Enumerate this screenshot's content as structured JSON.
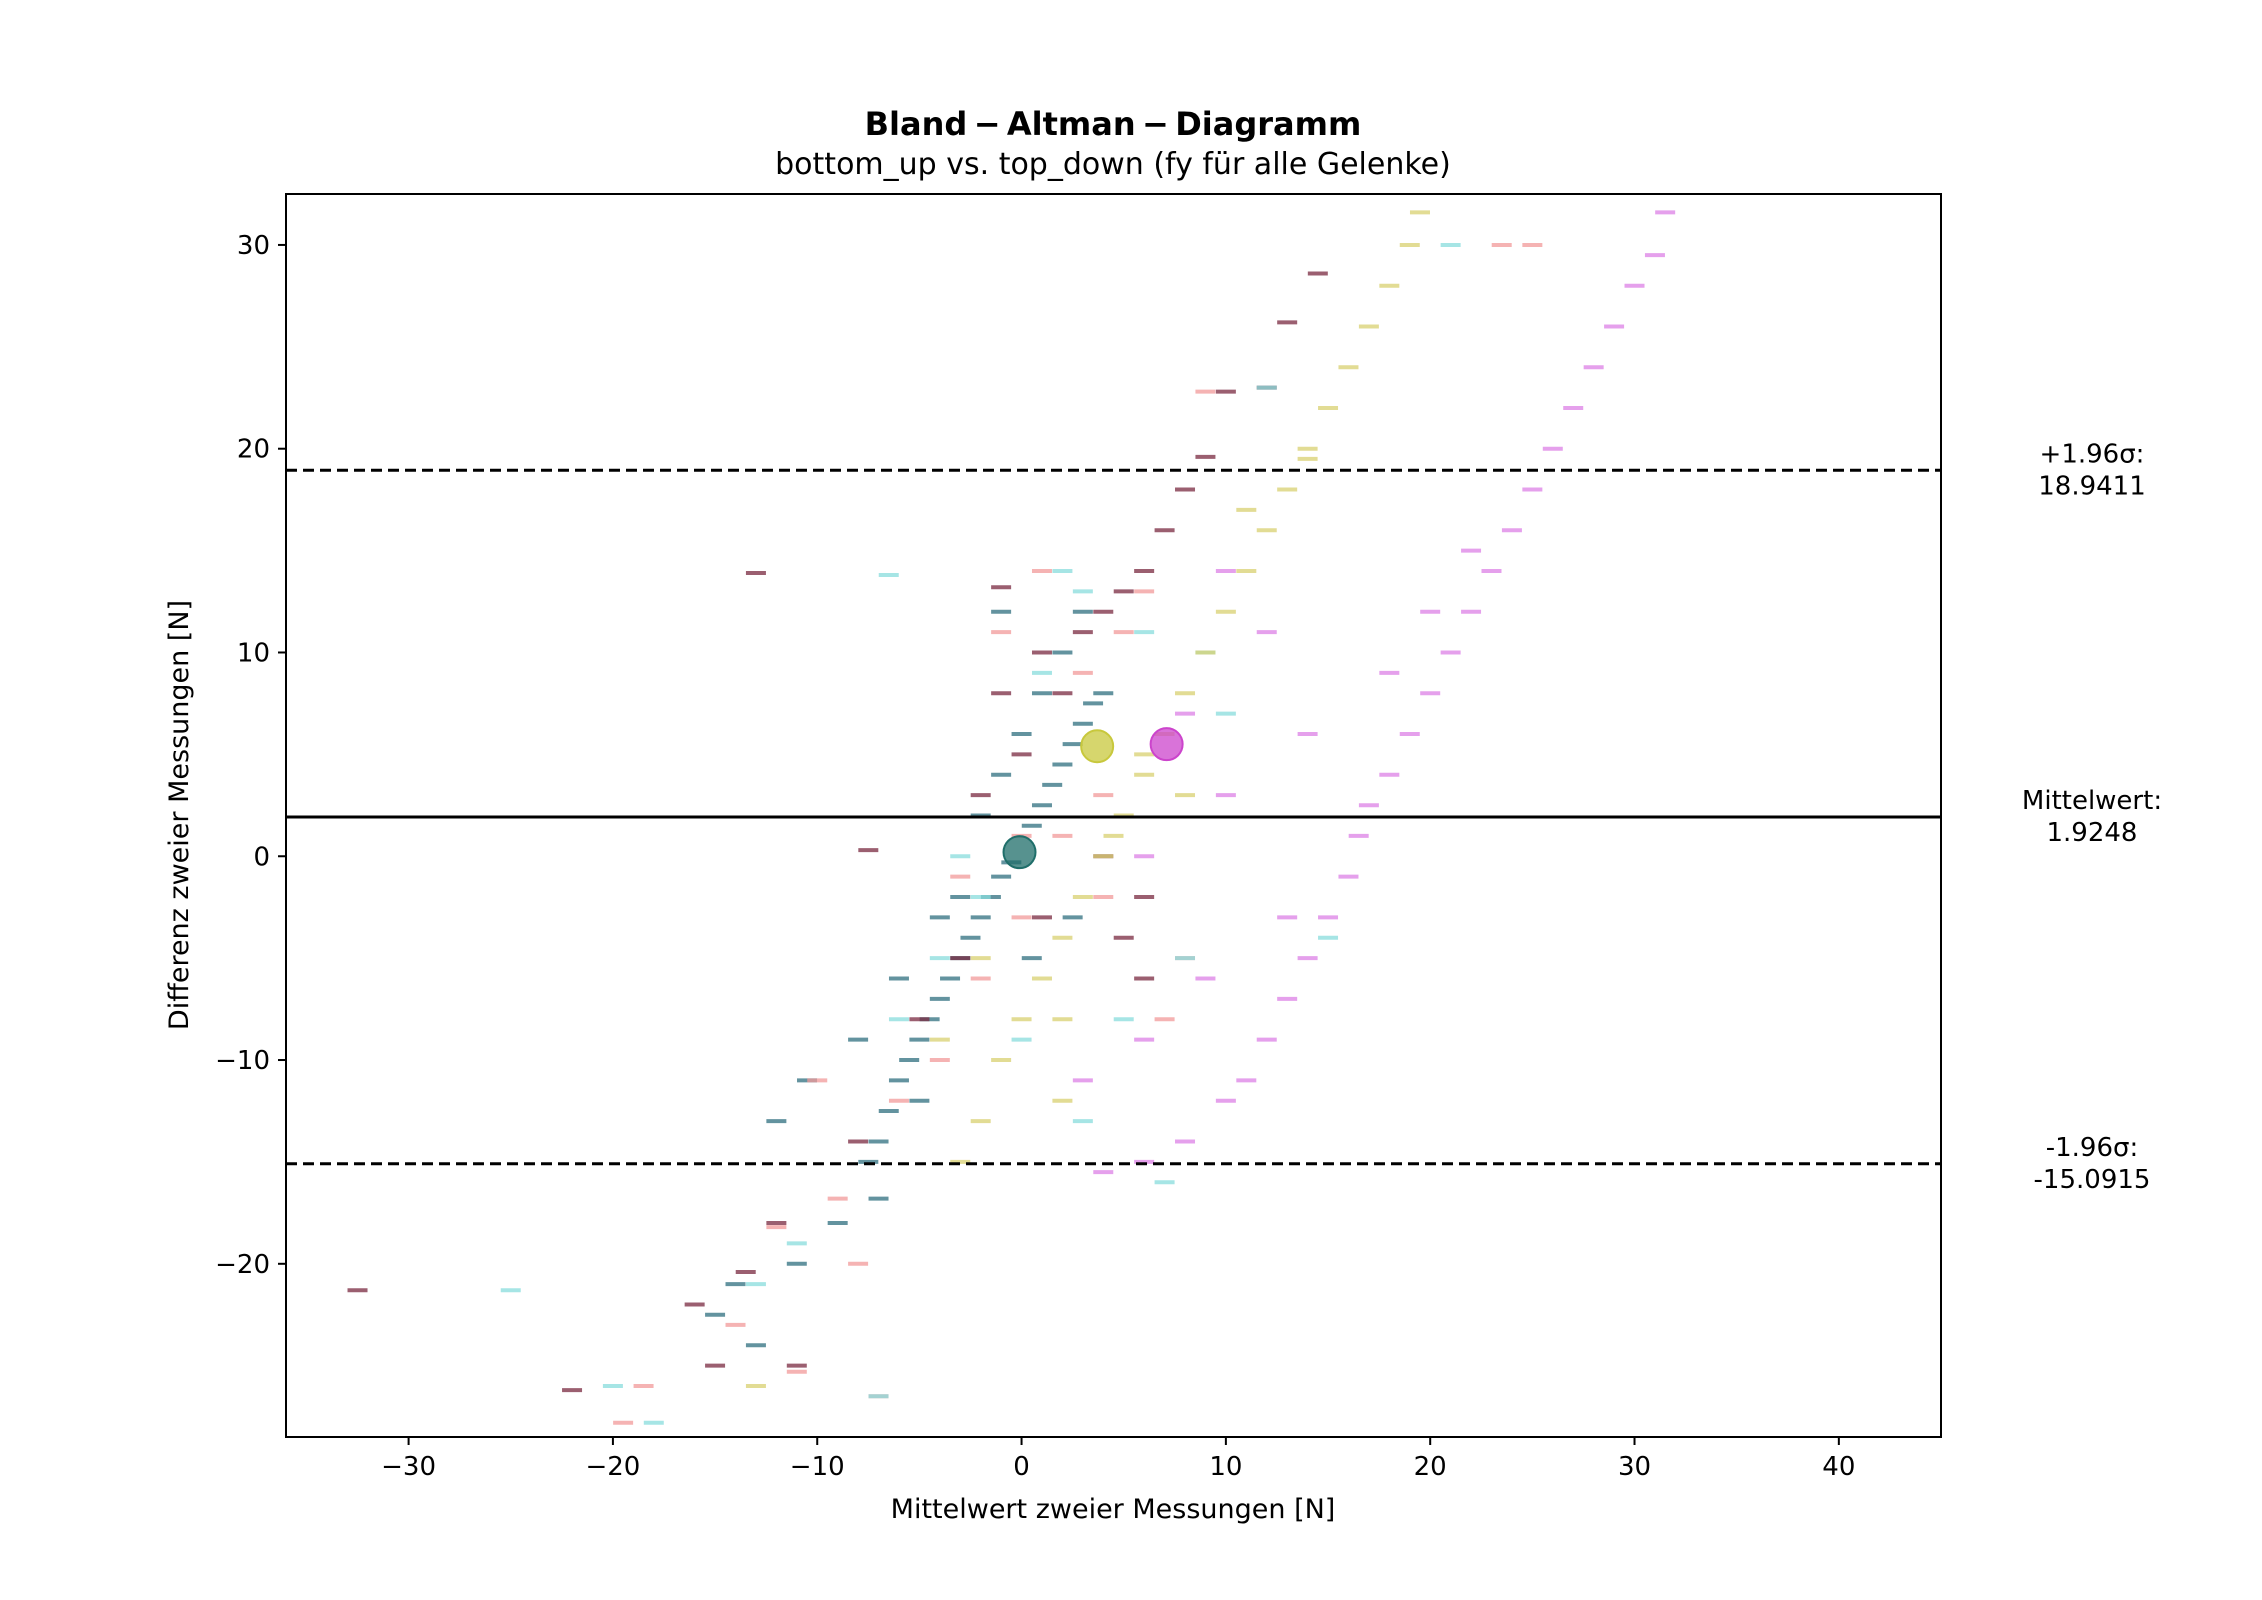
{
  "chart_data": {
    "type": "scatter",
    "title": "Bland − Altman − Diagramm",
    "subtitle": "bottom_up vs. top_down (fy für alle Gelenke)",
    "xlabel": "Mittelwert zweier Messungen [N]",
    "ylabel": "Differenz zweier Messungen [N]",
    "xlim": [
      -36,
      45
    ],
    "ylim": [
      -28.5,
      32.5
    ],
    "x_ticks": [
      -30,
      -20,
      -10,
      0,
      10,
      20,
      30,
      40
    ],
    "y_ticks": [
      -20,
      -10,
      0,
      10,
      20,
      30
    ],
    "x_tick_labels": [
      "−30",
      "−20",
      "−10",
      "0",
      "10",
      "20",
      "30",
      "40"
    ],
    "y_tick_labels": [
      "−20",
      "−10",
      "0",
      "10",
      "20",
      "30"
    ],
    "grid": false,
    "reference_lines": [
      {
        "name": "upper-loa",
        "y": 18.9411,
        "style": "dashed",
        "label_line1": "+1.96σ:",
        "label_line2": "18.9411"
      },
      {
        "name": "mean",
        "y": 1.9248,
        "style": "solid",
        "label_line1": "Mittelwert:",
        "label_line2": "1.9248"
      },
      {
        "name": "lower-loa",
        "y": -15.0915,
        "style": "dashed",
        "label_line1": "-1.96σ:",
        "label_line2": "-15.0915"
      }
    ],
    "group_means": [
      {
        "color": "#1f6e6a",
        "x": -0.1,
        "y": 0.2
      },
      {
        "color": "#c8c83c",
        "x": 3.7,
        "y": 5.4
      },
      {
        "color": "#cc44cc",
        "x": 7.1,
        "y": 5.5
      }
    ],
    "series": [
      {
        "color": "#2f6f7f",
        "points": [
          [
            -7.5,
            -15
          ],
          [
            -7,
            -14
          ],
          [
            -6.5,
            -12.5
          ],
          [
            -6,
            -11
          ],
          [
            -5.5,
            -10
          ],
          [
            -5,
            -9
          ],
          [
            -4.5,
            -8
          ],
          [
            -4,
            -7
          ],
          [
            -3.5,
            -6
          ],
          [
            -3,
            -5
          ],
          [
            -2.5,
            -4
          ],
          [
            -2,
            -3
          ],
          [
            -1.5,
            -2
          ],
          [
            -1,
            -1
          ],
          [
            -0.5,
            -0.3
          ],
          [
            0.5,
            1.5
          ],
          [
            1,
            2.5
          ],
          [
            1.5,
            3.5
          ],
          [
            2,
            4.5
          ],
          [
            2.5,
            5.5
          ],
          [
            3,
            6.5
          ],
          [
            3.5,
            7.5
          ],
          [
            -10.5,
            -11
          ],
          [
            -12,
            -13
          ],
          [
            -14,
            -21
          ],
          [
            -15,
            -22.5
          ],
          [
            -9,
            -18
          ],
          [
            -11,
            -20
          ],
          [
            -13,
            -24
          ],
          [
            -3,
            -2
          ],
          [
            -1,
            4
          ],
          [
            1,
            8
          ],
          [
            2,
            10
          ],
          [
            0,
            6
          ],
          [
            -2,
            2
          ],
          [
            -4,
            -3
          ],
          [
            -6,
            -6
          ],
          [
            -8,
            -9
          ],
          [
            3,
            12
          ],
          [
            -1,
            12
          ],
          [
            0.5,
            -5
          ],
          [
            2.5,
            -3
          ],
          [
            -7,
            -16.8
          ],
          [
            -5,
            -12
          ],
          [
            4,
            8
          ]
        ]
      },
      {
        "color": "#7a2a40",
        "points": [
          [
            -32.5,
            -21.3
          ],
          [
            -22,
            -26.2
          ],
          [
            -13.5,
            -20.4
          ],
          [
            -7.5,
            0.3
          ],
          [
            -13,
            13.9
          ],
          [
            -1,
            13.2
          ],
          [
            1,
            10
          ],
          [
            2,
            8
          ],
          [
            3,
            11
          ],
          [
            4,
            12
          ],
          [
            5,
            13
          ],
          [
            6,
            14
          ],
          [
            7,
            16
          ],
          [
            8,
            18
          ],
          [
            9,
            19.6
          ],
          [
            10,
            22.8
          ],
          [
            12,
            23
          ],
          [
            13,
            26.2
          ],
          [
            14.5,
            28.6
          ],
          [
            0,
            5
          ],
          [
            -2,
            3
          ],
          [
            1,
            -3
          ],
          [
            4,
            0
          ],
          [
            6,
            -6
          ],
          [
            -3,
            -5
          ],
          [
            -5,
            -8
          ],
          [
            -8,
            -14
          ],
          [
            -12,
            -18
          ],
          [
            -16,
            -22
          ],
          [
            -11,
            -25
          ],
          [
            -15,
            -25
          ],
          [
            6,
            -2
          ],
          [
            5,
            -4
          ],
          [
            -1,
            8
          ]
        ]
      },
      {
        "color": "#f29a9a",
        "points": [
          [
            -19.5,
            -27.8
          ],
          [
            -18.5,
            -26
          ],
          [
            -11,
            -25.3
          ],
          [
            -7,
            -26.5
          ],
          [
            -12,
            -18.2
          ],
          [
            -10,
            -11
          ],
          [
            -9,
            -16.8
          ],
          [
            -6,
            -12
          ],
          [
            -4,
            -10
          ],
          [
            -2,
            -6
          ],
          [
            0,
            -3
          ],
          [
            2,
            1
          ],
          [
            4,
            3
          ],
          [
            5,
            11
          ],
          [
            6,
            13
          ],
          [
            3,
            9
          ],
          [
            1,
            14
          ],
          [
            23.5,
            30
          ],
          [
            25,
            30
          ],
          [
            9,
            22.8
          ],
          [
            -14,
            -23
          ],
          [
            -8,
            -20
          ],
          [
            -3,
            -1
          ],
          [
            4,
            -2
          ],
          [
            8,
            -5
          ],
          [
            7,
            -8
          ],
          [
            -1,
            11
          ],
          [
            0,
            1
          ]
        ]
      },
      {
        "color": "#88dcdc",
        "points": [
          [
            -25,
            -21.3
          ],
          [
            -18,
            -27.8
          ],
          [
            -20,
            -26
          ],
          [
            -7,
            -26.5
          ],
          [
            -13,
            -21
          ],
          [
            -6,
            -8
          ],
          [
            -4,
            -5
          ],
          [
            -2,
            -2
          ],
          [
            1,
            9
          ],
          [
            3,
            13
          ],
          [
            2,
            14
          ],
          [
            6,
            11
          ],
          [
            9,
            10
          ],
          [
            10,
            7
          ],
          [
            -6.5,
            13.8
          ],
          [
            8,
            -5
          ],
          [
            12,
            23
          ],
          [
            21,
            30
          ],
          [
            -3,
            0
          ],
          [
            5,
            -8
          ],
          [
            0,
            -9
          ],
          [
            3,
            -13
          ],
          [
            15,
            -4
          ],
          [
            -11,
            -19
          ],
          [
            7,
            -16
          ]
        ]
      },
      {
        "color": "#d8d070",
        "points": [
          [
            5,
            2
          ],
          [
            6,
            4
          ],
          [
            7,
            6
          ],
          [
            8,
            8
          ],
          [
            9,
            10
          ],
          [
            10,
            12
          ],
          [
            11,
            14
          ],
          [
            12,
            16
          ],
          [
            13,
            18
          ],
          [
            14,
            20
          ],
          [
            15,
            22
          ],
          [
            16,
            24
          ],
          [
            17,
            26
          ],
          [
            18,
            28
          ],
          [
            19,
            30
          ],
          [
            19.5,
            31.6
          ],
          [
            4,
            0
          ],
          [
            3,
            -2
          ],
          [
            2,
            -4
          ],
          [
            1,
            -6
          ],
          [
            0,
            -8
          ],
          [
            -1,
            -10
          ],
          [
            -2,
            -13
          ],
          [
            -3,
            -15
          ],
          [
            4.5,
            1
          ],
          [
            2,
            -8
          ],
          [
            6,
            5
          ],
          [
            8,
            3
          ],
          [
            -4,
            -9
          ],
          [
            -2,
            -5
          ],
          [
            11,
            17
          ],
          [
            14,
            19.5
          ],
          [
            -13,
            -26
          ],
          [
            2,
            -12
          ]
        ]
      },
      {
        "color": "#dc80e6",
        "points": [
          [
            16.5,
            1
          ],
          [
            17,
            2.5
          ],
          [
            18,
            4
          ],
          [
            19,
            6
          ],
          [
            20,
            8
          ],
          [
            21,
            10
          ],
          [
            22,
            12
          ],
          [
            23,
            14
          ],
          [
            24,
            16
          ],
          [
            25,
            18
          ],
          [
            26,
            20
          ],
          [
            27,
            22
          ],
          [
            28,
            24
          ],
          [
            29,
            26
          ],
          [
            30,
            28
          ],
          [
            31,
            29.5
          ],
          [
            31.5,
            31.6
          ],
          [
            16,
            -1
          ],
          [
            15,
            -3
          ],
          [
            14,
            -5
          ],
          [
            13,
            -7
          ],
          [
            12,
            -9
          ],
          [
            11,
            -11
          ],
          [
            10,
            -12
          ],
          [
            8,
            -14
          ],
          [
            6,
            -15
          ],
          [
            4,
            -15.5
          ],
          [
            6,
            0
          ],
          [
            10,
            3
          ],
          [
            14,
            6
          ],
          [
            18,
            9
          ],
          [
            22,
            15
          ],
          [
            9,
            -6
          ],
          [
            13,
            -3
          ],
          [
            8,
            7
          ],
          [
            12,
            11
          ],
          [
            6,
            -9
          ],
          [
            3,
            -11
          ],
          [
            10,
            14
          ],
          [
            20,
            12
          ]
        ]
      }
    ]
  }
}
